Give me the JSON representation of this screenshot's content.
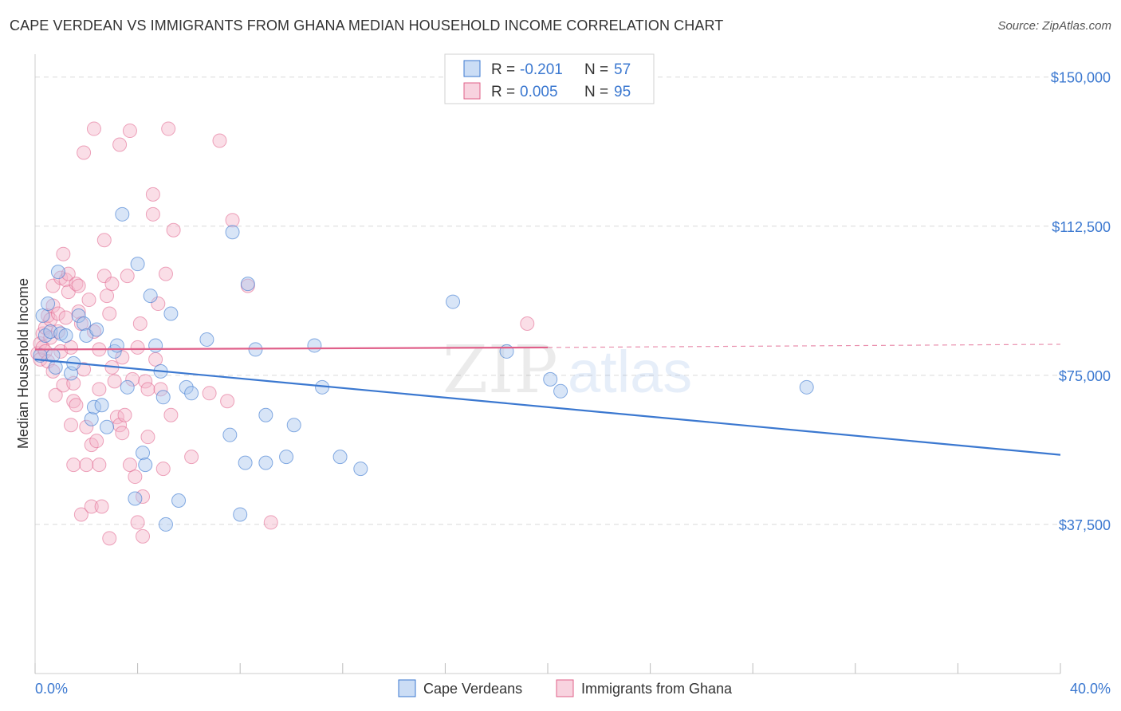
{
  "header": {
    "title": "CAPE VERDEAN VS IMMIGRANTS FROM GHANA MEDIAN HOUSEHOLD INCOME CORRELATION CHART",
    "source": "Source: ZipAtlas.com"
  },
  "colors": {
    "blue": "#3b78d0",
    "blue_fill": "#a9c6ee",
    "pink": "#e0608a",
    "pink_fill": "#f4b6ca",
    "grid": "#d9d9d9"
  },
  "legend_top": {
    "rows": [
      {
        "r_label": "R =",
        "r_value": "-0.201",
        "n_label": "N =",
        "n_value": "57"
      },
      {
        "r_label": "R =",
        "r_value": "0.005",
        "n_label": "N =",
        "n_value": "95"
      }
    ]
  },
  "watermark": {
    "zip": "ZIP",
    "atlas": "atlas"
  },
  "chart_data": {
    "type": "scatter",
    "ylabel": "Median Household Income",
    "x_tick_labels": [
      "0.0%",
      "40.0%"
    ],
    "y_tick_labels": [
      "$150,000",
      "$112,500",
      "$75,000",
      "$37,500"
    ],
    "y_ticks": [
      150000,
      112500,
      75000,
      37500
    ],
    "xlim": [
      0,
      40
    ],
    "ylim": [
      0,
      153750
    ],
    "grid": true,
    "legend_position": "bottom",
    "series": [
      {
        "name": "Cape Verdeans",
        "color": "#3b78d0",
        "trend": {
          "x": [
            0,
            40
          ],
          "y": [
            79000,
            55000
          ],
          "dashed_from": null
        },
        "points": [
          [
            0.2,
            80000
          ],
          [
            0.3,
            90000
          ],
          [
            0.4,
            85000
          ],
          [
            0.5,
            93000
          ],
          [
            0.6,
            86000
          ],
          [
            0.7,
            80000
          ],
          [
            0.8,
            77000
          ],
          [
            0.9,
            101000
          ],
          [
            1.0,
            85500
          ],
          [
            1.2,
            85000
          ],
          [
            1.4,
            75500
          ],
          [
            1.5,
            78000
          ],
          [
            1.7,
            90000
          ],
          [
            1.9,
            88000
          ],
          [
            2.0,
            85000
          ],
          [
            2.2,
            64000
          ],
          [
            2.3,
            67000
          ],
          [
            2.4,
            86500
          ],
          [
            2.6,
            67500
          ],
          [
            2.8,
            62000
          ],
          [
            3.1,
            81000
          ],
          [
            3.2,
            82500
          ],
          [
            3.4,
            115500
          ],
          [
            3.6,
            72000
          ],
          [
            3.9,
            44000
          ],
          [
            4.0,
            103000
          ],
          [
            4.2,
            55500
          ],
          [
            4.3,
            52500
          ],
          [
            4.5,
            95000
          ],
          [
            4.7,
            82500
          ],
          [
            4.9,
            76000
          ],
          [
            5.0,
            69500
          ],
          [
            5.1,
            37500
          ],
          [
            5.3,
            90500
          ],
          [
            5.6,
            43500
          ],
          [
            5.9,
            72000
          ],
          [
            6.1,
            70500
          ],
          [
            6.7,
            84000
          ],
          [
            7.6,
            60000
          ],
          [
            7.7,
            111000
          ],
          [
            8.0,
            40000
          ],
          [
            8.2,
            53000
          ],
          [
            8.3,
            98000
          ],
          [
            8.6,
            81500
          ],
          [
            9.0,
            65000
          ],
          [
            9.0,
            53000
          ],
          [
            9.8,
            54500
          ],
          [
            10.1,
            62500
          ],
          [
            10.9,
            82500
          ],
          [
            11.2,
            72000
          ],
          [
            11.9,
            54500
          ],
          [
            12.7,
            51500
          ],
          [
            16.3,
            93500
          ],
          [
            18.4,
            81000
          ],
          [
            20.1,
            74000
          ],
          [
            20.5,
            71000
          ],
          [
            30.1,
            72000
          ]
        ]
      },
      {
        "name": "Immigrants from Ghana",
        "color": "#e0608a",
        "trend": {
          "x": [
            0,
            20,
            40
          ],
          "y": [
            81500,
            82000,
            82800
          ],
          "dashed_from": 20
        },
        "points": [
          [
            0.1,
            80500
          ],
          [
            0.2,
            83000
          ],
          [
            0.2,
            79000
          ],
          [
            0.3,
            85500
          ],
          [
            0.3,
            82000
          ],
          [
            0.4,
            87000
          ],
          [
            0.4,
            81000
          ],
          [
            0.5,
            78500
          ],
          [
            0.5,
            90000
          ],
          [
            0.6,
            89000
          ],
          [
            0.6,
            84500
          ],
          [
            0.7,
            97500
          ],
          [
            0.7,
            92500
          ],
          [
            0.7,
            76000
          ],
          [
            0.8,
            70000
          ],
          [
            0.9,
            86000
          ],
          [
            0.9,
            90500
          ],
          [
            1.0,
            99500
          ],
          [
            1.0,
            81000
          ],
          [
            1.1,
            72500
          ],
          [
            1.1,
            105500
          ],
          [
            1.2,
            89500
          ],
          [
            1.2,
            99000
          ],
          [
            1.3,
            100500
          ],
          [
            1.3,
            96000
          ],
          [
            1.4,
            62500
          ],
          [
            1.4,
            82000
          ],
          [
            1.5,
            52500
          ],
          [
            1.5,
            73000
          ],
          [
            1.5,
            68500
          ],
          [
            1.6,
            67500
          ],
          [
            1.6,
            98000
          ],
          [
            1.7,
            91000
          ],
          [
            1.7,
            97500
          ],
          [
            1.8,
            88000
          ],
          [
            1.8,
            40000
          ],
          [
            1.9,
            131000
          ],
          [
            1.9,
            76500
          ],
          [
            2.0,
            62000
          ],
          [
            2.0,
            52500
          ],
          [
            2.1,
            94000
          ],
          [
            2.2,
            57500
          ],
          [
            2.2,
            42000
          ],
          [
            2.3,
            137000
          ],
          [
            2.3,
            86000
          ],
          [
            2.4,
            58500
          ],
          [
            2.5,
            52500
          ],
          [
            2.5,
            71500
          ],
          [
            2.5,
            81500
          ],
          [
            2.6,
            42000
          ],
          [
            2.7,
            109000
          ],
          [
            2.7,
            100000
          ],
          [
            2.8,
            95000
          ],
          [
            2.9,
            90500
          ],
          [
            2.9,
            34000
          ],
          [
            3.0,
            98000
          ],
          [
            3.0,
            77000
          ],
          [
            3.1,
            73500
          ],
          [
            3.2,
            64500
          ],
          [
            3.3,
            133000
          ],
          [
            3.3,
            62500
          ],
          [
            3.4,
            60500
          ],
          [
            3.4,
            79500
          ],
          [
            3.5,
            65000
          ],
          [
            3.6,
            100000
          ],
          [
            3.7,
            52500
          ],
          [
            3.7,
            136500
          ],
          [
            3.8,
            74000
          ],
          [
            3.9,
            49500
          ],
          [
            4.0,
            38000
          ],
          [
            4.0,
            82000
          ],
          [
            4.1,
            88000
          ],
          [
            4.2,
            34500
          ],
          [
            4.2,
            44500
          ],
          [
            4.3,
            73500
          ],
          [
            4.4,
            71500
          ],
          [
            4.4,
            59500
          ],
          [
            4.6,
            120500
          ],
          [
            4.6,
            115500
          ],
          [
            4.7,
            79000
          ],
          [
            4.8,
            93000
          ],
          [
            4.9,
            71500
          ],
          [
            5.0,
            51500
          ],
          [
            5.1,
            100500
          ],
          [
            5.2,
            137000
          ],
          [
            5.3,
            65000
          ],
          [
            5.4,
            111500
          ],
          [
            6.1,
            54500
          ],
          [
            6.8,
            70500
          ],
          [
            7.2,
            134000
          ],
          [
            7.5,
            68500
          ],
          [
            7.7,
            114000
          ],
          [
            8.3,
            97500
          ],
          [
            9.2,
            38000
          ],
          [
            19.2,
            88000
          ]
        ]
      }
    ]
  }
}
